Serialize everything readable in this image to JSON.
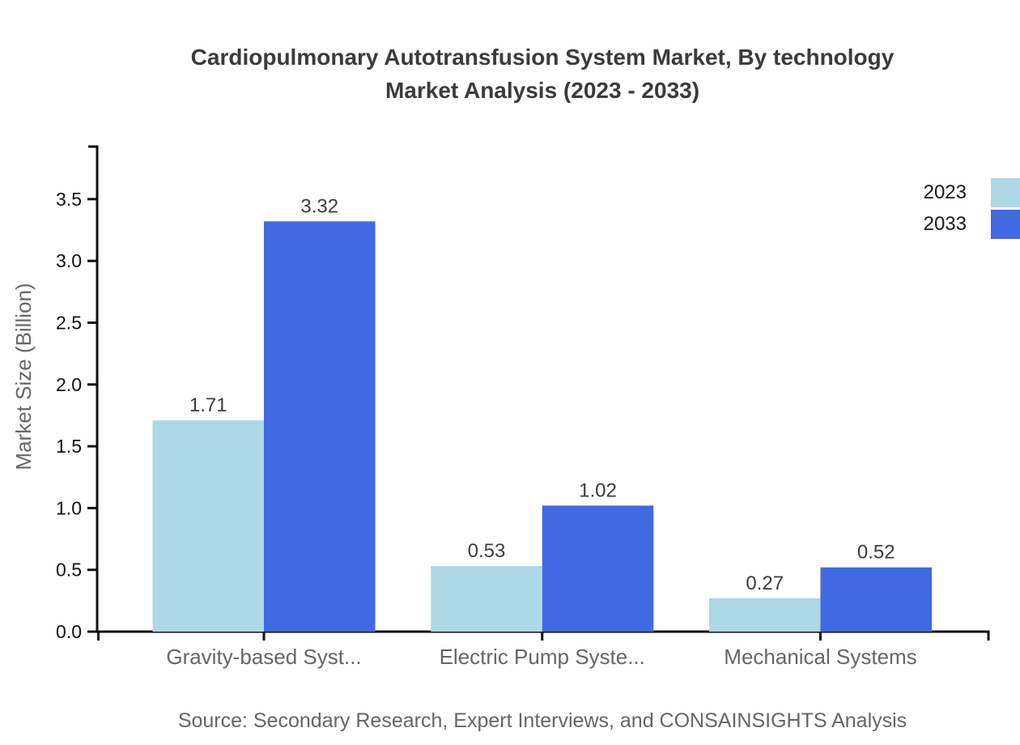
{
  "title": {
    "line1": "Cardiopulmonary Autotransfusion System Market, By technology",
    "line2": "Market Analysis (2023 - 2033)"
  },
  "legend": [
    {
      "label": "2023",
      "color": "#ADD8E6"
    },
    {
      "label": "2033",
      "color": "#4169E1"
    }
  ],
  "source": "Source: Secondary Research, Expert Interviews, and CONSAINSIGHTS Analysis",
  "colors": {
    "title_text": "#3b3b3b",
    "axis_line": "#111111",
    "tick_label": "#111111",
    "value_label": "#3d3d3d",
    "category_label": "#666666",
    "axis_title": "#666666",
    "source_text": "#666666",
    "background": "#ffffff"
  },
  "chart_data": {
    "type": "bar",
    "title": "Cardiopulmonary Autotransfusion System Market, By technology Market Analysis (2023 - 2033)",
    "categories": [
      "Gravity-based Syst...",
      "Electric Pump Syste...",
      "Mechanical Systems"
    ],
    "series": [
      {
        "name": "2023",
        "color": "#ADD8E6",
        "values": [
          1.71,
          0.53,
          0.27
        ]
      },
      {
        "name": "2033",
        "color": "#4169E1",
        "values": [
          3.32,
          1.02,
          0.52
        ]
      }
    ],
    "xlabel": "",
    "ylabel": "Market Size (Billion)",
    "ylim": [
      0,
      3.9
    ],
    "yticks": [
      0.0,
      0.5,
      1.0,
      1.5,
      2.0,
      2.5,
      3.0,
      3.5
    ],
    "grid": false,
    "legend_position": "top-right",
    "value_label_decimals": 2
  }
}
